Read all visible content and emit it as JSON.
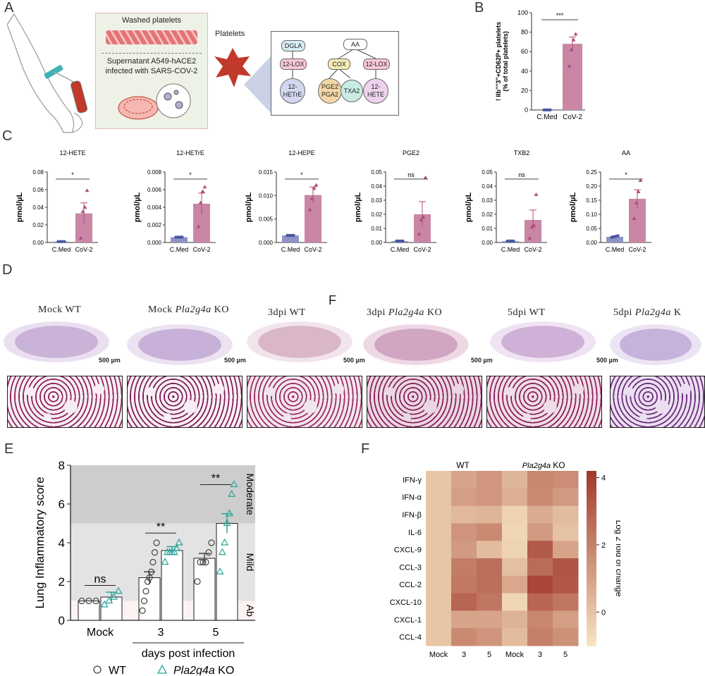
{
  "colors": {
    "med": "#4a55a2",
    "cov": "#b24c7a",
    "covbar": "#c987a5",
    "medbar": "#8c93c6",
    "wt": "#444444",
    "ko": "#2aa39a",
    "heat_low": "#f8e7c4",
    "heat_high": "#a23a2c"
  },
  "panels": {
    "a": "A",
    "b": "B",
    "c": "C",
    "d": "D",
    "e": "E",
    "f": "F",
    "f_stray": "F"
  },
  "schematic": {
    "washed": "Washed platelets",
    "supernatant_line1": "Supernatant A549-hACE2",
    "supernatant_line2": "infected with SARS-COV-2",
    "platelets": "Platelets",
    "nodes": {
      "dgla": "DGLA",
      "aa": "AA",
      "lox1": "12-LOX",
      "cox": "COX",
      "lox2": "12-LOX",
      "hetre_1": "12-",
      "hetre_2": "HETrE",
      "pge2_1": "PGE2",
      "pge2_2": "PGA2",
      "txa2": "TXA2",
      "hete_1": "12-",
      "hete_2": "HETE"
    }
  },
  "chart_data": [
    {
      "type": "bar",
      "panel": "B",
      "ylabel_line1": "! IIb\"\"3\"+CD62P+ platelets",
      "ylabel_line2": "(% of total platelets)",
      "categories": [
        "C.Med",
        "CoV-2"
      ],
      "values": [
        0,
        68
      ],
      "errors": [
        0,
        7
      ],
      "points": [
        [
          0,
          0,
          0,
          0
        ],
        [
          45,
          62,
          72,
          78
        ]
      ],
      "ylim": [
        0,
        100
      ],
      "yticks": [
        "0",
        "20",
        "40",
        "60",
        "80",
        "100"
      ],
      "significance": "***"
    },
    {
      "type": "bar",
      "panel": "C",
      "title": "12-HETE",
      "ylabel": "pmol/µL",
      "categories": [
        "C.Med",
        "CoV-2"
      ],
      "values": [
        0.001,
        0.033
      ],
      "errors": [
        0,
        0.012
      ],
      "points": [
        [
          0.001,
          0.001,
          0.001,
          0.001
        ],
        [
          0.005,
          0.035,
          0.04,
          0.059
        ]
      ],
      "ylim": [
        0,
        0.08
      ],
      "yticks": [
        "0.00",
        "0.02",
        "0.04",
        "0.06",
        "0.08"
      ],
      "significance": "*"
    },
    {
      "type": "bar",
      "panel": "C",
      "title": "12-HETrE",
      "ylabel": "pmol/µL",
      "categories": [
        "C.Med",
        "CoV-2"
      ],
      "values": [
        0.0006,
        0.0044
      ],
      "errors": [
        0.0001,
        0.0012
      ],
      "points": [
        [
          0.0006,
          0.0006,
          0.0006,
          0.0006
        ],
        [
          0.0018,
          0.0045,
          0.0058,
          0.0063
        ]
      ],
      "ylim": [
        0,
        0.008
      ],
      "yticks": [
        "0.000",
        "0.002",
        "0.004",
        "0.006",
        "0.008"
      ],
      "significance": "*"
    },
    {
      "type": "bar",
      "panel": "C",
      "title": "12-HEPE",
      "ylabel": "pmol/µL",
      "categories": [
        "C.Med",
        "CoV-2"
      ],
      "values": [
        0.0015,
        0.0101
      ],
      "errors": [
        0.0001,
        0.0017
      ],
      "points": [
        [
          0.0015,
          0.0015,
          0.0015,
          0.0015
        ],
        [
          0.007,
          0.0093,
          0.0115,
          0.0122
        ]
      ],
      "ylim": [
        0,
        0.015
      ],
      "yticks": [
        "0.000",
        "0.005",
        "0.010",
        "0.015"
      ],
      "significance": "*"
    },
    {
      "type": "bar",
      "panel": "C",
      "title": "PGE2",
      "ylabel": "pmol/µL",
      "categories": [
        "C.Med",
        "CoV-2"
      ],
      "values": [
        0.001,
        0.02
      ],
      "errors": [
        0,
        0.009
      ],
      "points": [
        [
          0.001,
          0.001,
          0.001,
          0.001
        ],
        [
          0.006,
          0.016,
          0.018,
          0.046
        ]
      ],
      "ylim": [
        0,
        0.05
      ],
      "yticks": [
        "0.00",
        "0.01",
        "0.02",
        "0.03",
        "0.04",
        "0.05"
      ],
      "significance": "ns"
    },
    {
      "type": "bar",
      "panel": "C",
      "title": "TXB2",
      "ylabel": "pmol/µL",
      "categories": [
        "C.Med",
        "CoV-2"
      ],
      "values": [
        0.001,
        0.016
      ],
      "errors": [
        0,
        0.007
      ],
      "points": [
        [
          0.001,
          0.001,
          0.001,
          0.001
        ],
        [
          0.003,
          0.011,
          0.012,
          0.034
        ]
      ],
      "ylim": [
        0,
        0.05
      ],
      "yticks": [
        "0.00",
        "0.01",
        "0.02",
        "0.03",
        "0.04",
        "0.05"
      ],
      "significance": "ns"
    },
    {
      "type": "bar",
      "panel": "C",
      "title": "AA",
      "ylabel": "pmol/µL",
      "categories": [
        "C.Med",
        "CoV-2"
      ],
      "values": [
        0.02,
        0.155
      ],
      "errors": [
        0.003,
        0.032
      ],
      "points": [
        [
          0.018,
          0.02,
          0.022,
          0.024
        ],
        [
          0.085,
          0.14,
          0.18,
          0.22
        ]
      ],
      "ylim": [
        0,
        0.25
      ],
      "yticks": [
        "0.00",
        "0.05",
        "0.10",
        "0.15",
        "0.20",
        "0.25"
      ],
      "significance": "*"
    },
    {
      "type": "bar",
      "panel": "E",
      "ylabel": "Lung Inflammatory score",
      "xlabel": "days post infection",
      "categories": [
        "Mock",
        "3",
        "5"
      ],
      "series": [
        {
          "name": "WT",
          "values": [
            1.0,
            2.2,
            3.2
          ],
          "errors": [
            0,
            0.3,
            0.25
          ],
          "points": [
            [
              1,
              1,
              1
            ],
            [
              0.5,
              1,
              1.5,
              2,
              2.2,
              2.5,
              3,
              3.5,
              4
            ],
            [
              2,
              3,
              3,
              3,
              3.5,
              4
            ]
          ]
        },
        {
          "name": "Pla2g4a KO",
          "values": [
            1.2,
            3.6,
            5.0
          ],
          "errors": [
            0.25,
            0.2,
            0.5
          ],
          "points": [
            [
              0.8,
              1,
              1.2,
              1.5
            ],
            [
              3,
              3.5,
              3.5,
              3.5,
              3.5,
              3.7,
              4
            ],
            [
              2.5,
              3.5,
              4,
              5,
              5.5,
              6.5,
              7
            ]
          ]
        }
      ],
      "ylim": [
        0,
        8
      ],
      "yticks": [
        "0",
        "2",
        "4",
        "6",
        "8"
      ],
      "bands": [
        {
          "label": "Moderate",
          "from": 5,
          "to": 8,
          "color": "#cdcdcd"
        },
        {
          "label": "Mild",
          "from": 1,
          "to": 5,
          "color": "#e3e3e3"
        },
        {
          "label": "Ab",
          "from": 0,
          "to": 1,
          "color": "#fbf3f2"
        }
      ],
      "significance": [
        "ns",
        "**",
        "**"
      ],
      "legend": [
        "WT",
        "Pla2g4a KO"
      ]
    },
    {
      "type": "heatmap",
      "panel": "F",
      "rows": [
        "IFN-γ",
        "IFN-α",
        "IFN-β",
        "IL-6",
        "CXCL-9",
        "CCL-3",
        "CCL-2",
        "CXCL-10",
        "CXCL-1",
        "CCL-4"
      ],
      "columns": [
        "Mock",
        "3",
        "5",
        "Mock",
        "3",
        "5"
      ],
      "group_labels": [
        "WT",
        "Pla2g4a KO"
      ],
      "colorbar_label": "Log 2 fold of change",
      "colorbar_ticks": [
        "4",
        "2",
        "0"
      ],
      "range": [
        -1,
        4.2
      ],
      "values": [
        [
          0,
          1.0,
          1.4,
          0.5,
          1.9,
          1.7
        ],
        [
          0,
          1.2,
          1.4,
          0.7,
          1.8,
          1.3
        ],
        [
          0,
          0.4,
          0.5,
          -0.4,
          0.8,
          0.3
        ],
        [
          0,
          1.5,
          1.8,
          -0.5,
          1.3,
          0.1
        ],
        [
          0,
          1.3,
          0.3,
          -0.4,
          3.2,
          1.0
        ],
        [
          0,
          2.2,
          2.6,
          0.2,
          2.7,
          3.4
        ],
        [
          0,
          2.3,
          2.6,
          0.9,
          3.8,
          3.3
        ],
        [
          0,
          2.9,
          2.4,
          -0.5,
          2.9,
          2.4
        ],
        [
          0,
          1.0,
          1.0,
          0.6,
          1.9,
          1.2
        ],
        [
          0,
          1.8,
          1.5,
          0.3,
          2.1,
          1.6
        ]
      ]
    }
  ],
  "histology": {
    "titles": [
      "Mock WT",
      "Mock",
      "KO",
      "3dpi WT",
      "3dpi",
      "KO",
      "5dpi WT",
      "5dpi",
      "K"
    ],
    "italic": [
      "Pla2g4a",
      "Pla2g4a",
      "Pla2g4a"
    ],
    "scale": "500 µm"
  }
}
